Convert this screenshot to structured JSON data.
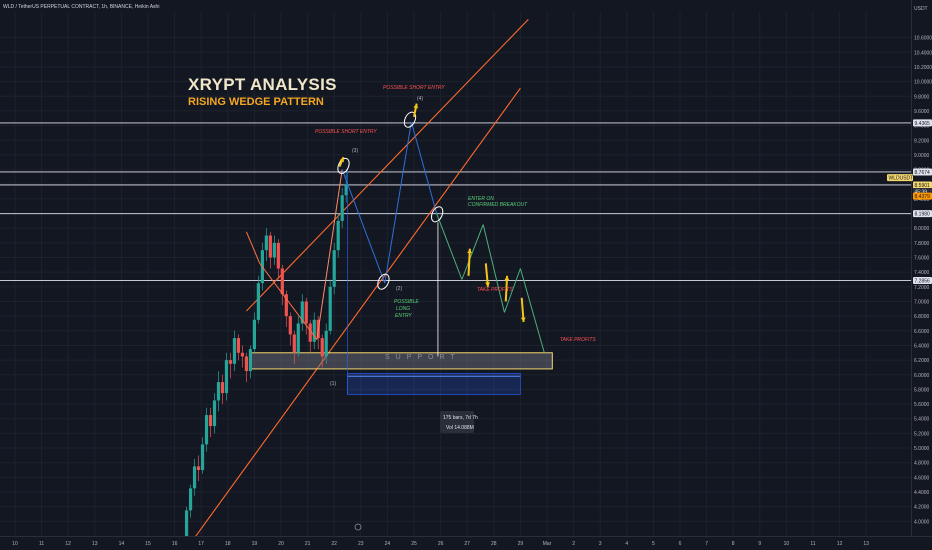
{
  "header": {
    "symbol": "WLD / TetherUS PERPETUAL CONTRACT, 1h, BINANCE, Heikin Ashi",
    "currency": "USDT"
  },
  "annotations": {
    "title": "XRYPT ANALYSIS",
    "subtitle": "RISING WEDGE PATTERN",
    "short_entry_1": "POSSIBLE SHORT ENTRY",
    "short_entry_2": "POSSIBLE SHORT ENTRY",
    "enter_1": "ENTER ON",
    "enter_2": "CONFIRMED BREAKOUT",
    "long_1": "POSSIBLE",
    "long_2": "LONG",
    "long_3": "ENTRY",
    "take_profits_1": "TAKE PROFITS",
    "take_profits_2": "TAKE PROFITS",
    "support": "SUPPORT",
    "pt1": "(1)",
    "pt2": "(2)",
    "pt3": "(3)",
    "pt4": "(4)",
    "measure_bars": "175 bars, 7d 7h",
    "measure_vol": "Vol 14.088M"
  },
  "colors": {
    "background": "#131722",
    "wedge": "#ff6a2b",
    "projection": "#2962ff",
    "path_up": "#2e6fd8",
    "path_down": "#4caf7a",
    "arrow": "#f5c518",
    "support": "#f5d76e",
    "hline": "#e0e3eb",
    "bull": "#26a69a",
    "bear": "#ef5350"
  },
  "chart_data": {
    "type": "candlestick",
    "title": "XRYPT ANALYSIS",
    "subtitle": "RISING WEDGE PATTERN",
    "ylim": [
      3.8,
      10.95
    ],
    "y_ticks": [
      "10.6000",
      "10.4000",
      "10.2000",
      "10.0000",
      "9.8000",
      "9.6000",
      "9.4000",
      "9.2000",
      "9.0000",
      "8.8000",
      "8.6000",
      "8.4000",
      "8.2000",
      "8.0000",
      "7.8000",
      "7.6000",
      "7.4000",
      "7.2000",
      "7.0000",
      "6.8000",
      "6.6000",
      "6.4000",
      "6.2000",
      "6.0000",
      "5.8000",
      "5.6000",
      "5.4000",
      "5.2000",
      "5.0000",
      "4.8000",
      "4.6000",
      "4.4000",
      "4.2000",
      "4.0000"
    ],
    "x_labels": [
      "10",
      "11",
      "12",
      "13",
      "14",
      "15",
      "16",
      "17",
      "18",
      "19",
      "20",
      "21",
      "22",
      "23",
      "24",
      "25",
      "26",
      "27",
      "28",
      "29",
      "Mar",
      "2",
      "3",
      "4",
      "5",
      "6",
      "7",
      "8",
      "9",
      "10",
      "11",
      "12",
      "13"
    ],
    "x_start_day": 10,
    "price_labels": [
      {
        "text": "9.4365",
        "value": 9.4365,
        "style": "white"
      },
      {
        "text": "8.7674",
        "value": 8.7674,
        "style": "white"
      },
      {
        "text": "WLDUSDT.P",
        "value": 8.69,
        "style": "yellow"
      },
      {
        "text": "8.5901",
        "value": 8.5901,
        "style": "yellow"
      },
      {
        "text": "45:39",
        "value": 8.5,
        "style": "dark"
      },
      {
        "text": "8.4379",
        "value": 8.4379,
        "style": "orange"
      },
      {
        "text": "8.1980",
        "value": 8.198,
        "style": "white"
      },
      {
        "text": "7.2856",
        "value": 7.2856,
        "style": "white"
      }
    ],
    "horizontal_levels": [
      9.4365,
      8.7674,
      8.5901,
      8.198,
      7.2856
    ],
    "support_zone": {
      "x_from": 18.85,
      "x_to": 30.2,
      "y_from": 6.08,
      "y_to": 6.3
    },
    "wedge_upper": [
      [
        18.7,
        6.87
      ],
      [
        29.3,
        10.85
      ]
    ],
    "wedge_lower": [
      [
        16.3,
        3.55
      ],
      [
        29.0,
        9.91
      ]
    ],
    "projection_box": {
      "x_from": 22.5,
      "x_to": 29.0,
      "y_from": 5.73,
      "y_to": 6.02
    },
    "measure_vline": {
      "x": 22.5,
      "y_from": 5.73,
      "y_to": 8.8
    },
    "candles": [
      [
        16.45,
        3.8,
        4.15,
        3.75,
        4.2
      ],
      [
        16.6,
        4.15,
        4.45,
        4.05,
        4.5
      ],
      [
        16.75,
        4.45,
        4.75,
        4.35,
        4.85
      ],
      [
        16.9,
        4.75,
        4.7,
        4.55,
        4.9
      ],
      [
        17.05,
        4.7,
        5.05,
        4.65,
        5.15
      ],
      [
        17.2,
        5.05,
        5.45,
        4.95,
        5.55
      ],
      [
        17.35,
        5.45,
        5.3,
        5.15,
        5.55
      ],
      [
        17.5,
        5.3,
        5.65,
        5.2,
        5.75
      ],
      [
        17.65,
        5.65,
        5.9,
        5.5,
        6.05
      ],
      [
        17.8,
        5.9,
        5.75,
        5.6,
        6.0
      ],
      [
        17.95,
        5.75,
        6.2,
        5.65,
        6.3
      ],
      [
        18.1,
        6.2,
        6.15,
        5.95,
        6.3
      ],
      [
        18.25,
        6.15,
        6.5,
        6.05,
        6.6
      ],
      [
        18.4,
        6.5,
        6.3,
        6.2,
        6.55
      ],
      [
        18.55,
        6.3,
        6.25,
        6.1,
        6.4
      ],
      [
        18.7,
        6.25,
        6.05,
        5.9,
        6.3
      ],
      [
        18.85,
        6.05,
        6.35,
        5.95,
        6.4
      ],
      [
        19.0,
        6.35,
        6.75,
        6.3,
        6.85
      ],
      [
        19.15,
        6.75,
        7.25,
        6.7,
        7.35
      ],
      [
        19.3,
        7.25,
        7.7,
        7.15,
        7.8
      ],
      [
        19.45,
        7.7,
        7.9,
        7.55,
        8.0
      ],
      [
        19.6,
        7.9,
        7.6,
        7.45,
        7.95
      ],
      [
        19.75,
        7.6,
        7.8,
        7.5,
        7.9
      ],
      [
        19.9,
        7.8,
        7.45,
        7.3,
        7.85
      ],
      [
        20.05,
        7.45,
        7.1,
        6.95,
        7.5
      ],
      [
        20.2,
        7.1,
        6.8,
        6.65,
        7.15
      ],
      [
        20.35,
        6.8,
        6.55,
        6.4,
        6.85
      ],
      [
        20.5,
        6.55,
        6.3,
        6.15,
        6.6
      ],
      [
        20.65,
        6.3,
        6.7,
        6.25,
        6.8
      ],
      [
        20.8,
        6.7,
        7.0,
        6.6,
        7.1
      ],
      [
        20.95,
        7.0,
        6.7,
        6.55,
        7.05
      ],
      [
        21.1,
        6.7,
        6.45,
        6.3,
        6.75
      ],
      [
        21.25,
        6.45,
        6.75,
        6.35,
        6.85
      ],
      [
        21.4,
        6.75,
        6.5,
        6.35,
        6.8
      ],
      [
        21.55,
        6.5,
        6.25,
        6.1,
        6.55
      ],
      [
        21.7,
        6.25,
        6.6,
        6.15,
        6.7
      ],
      [
        21.85,
        6.6,
        7.2,
        6.55,
        7.3
      ],
      [
        22.0,
        7.2,
        7.7,
        7.1,
        7.8
      ],
      [
        22.15,
        7.7,
        8.1,
        7.6,
        8.2
      ],
      [
        22.3,
        8.1,
        8.45,
        8.0,
        8.55
      ],
      [
        22.45,
        8.45,
        8.6,
        8.35,
        8.75
      ]
    ],
    "price_path": [
      [
        18.7,
        7.95
      ],
      [
        19.2,
        7.52
      ],
      [
        21.35,
        6.48
      ],
      [
        22.3,
        8.8
      ],
      [
        23.9,
        7.25
      ],
      [
        24.9,
        9.45
      ],
      [
        25.85,
        8.2
      ],
      [
        26.8,
        7.3
      ],
      [
        27.6,
        8.05
      ],
      [
        28.4,
        6.85
      ],
      [
        29.0,
        7.45
      ],
      [
        29.9,
        6.3
      ]
    ],
    "arrows": [
      [
        27.05,
        7.35,
        27.1,
        7.72
      ],
      [
        27.7,
        7.52,
        27.78,
        7.2
      ],
      [
        28.45,
        7.0,
        28.5,
        7.35
      ],
      [
        29.05,
        7.05,
        29.12,
        6.72
      ],
      [
        22.2,
        8.84,
        22.35,
        8.97
      ],
      [
        25.0,
        9.52,
        25.1,
        9.7
      ]
    ],
    "circles": [
      [
        22.35,
        8.85
      ],
      [
        24.85,
        9.48
      ],
      [
        23.85,
        7.27
      ],
      [
        25.87,
        8.19
      ]
    ]
  }
}
